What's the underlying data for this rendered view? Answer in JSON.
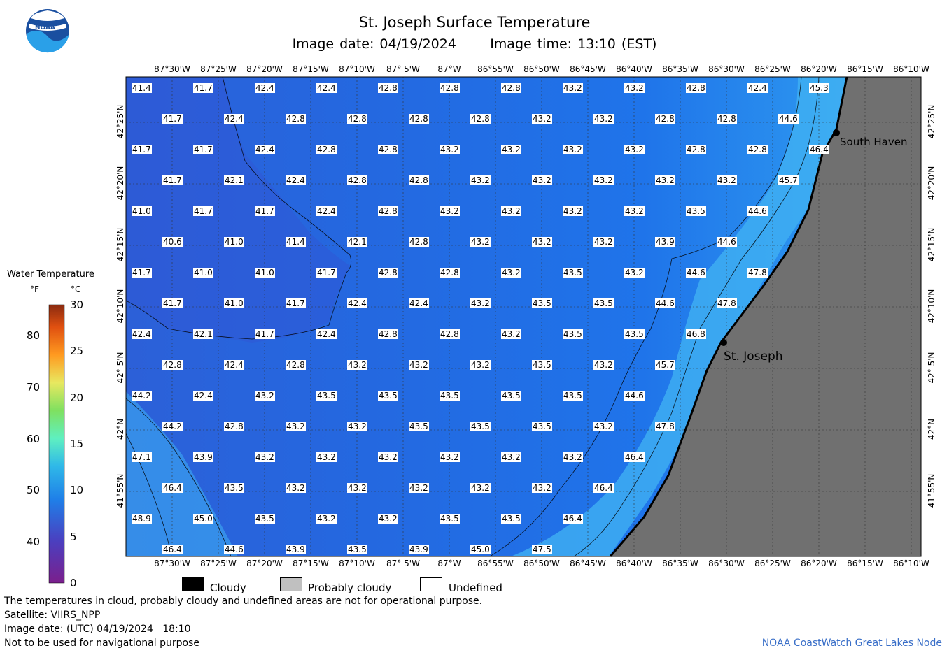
{
  "title": "St. Joseph Surface Temperature",
  "subtitle": {
    "date_label": "Image date:",
    "date": "04/19/2024",
    "time_label": "Image time:",
    "time": "13:10 (EST)"
  },
  "logo_text": "NOAA",
  "longitudes": [
    "87°30'W",
    "87°25'W",
    "87°20'W",
    "87°15'W",
    "87°10'W",
    "87° 5'W",
    "87°W",
    "86°55'W",
    "86°50'W",
    "86°45'W",
    "86°40'W",
    "86°35'W",
    "86°30'W",
    "86°25'W",
    "86°20'W",
    "86°15'W",
    "86°10'W"
  ],
  "latitudes": [
    "42°25'N",
    "42°20'N",
    "42°15'N",
    "42°10'N",
    "42° 5'N",
    "42°N",
    "41°55'N"
  ],
  "places": [
    {
      "name": "South Haven"
    },
    {
      "name": "St. Joseph"
    }
  ],
  "legend": {
    "title": "Water Temperature",
    "unit_f": "°F",
    "unit_c": "°C",
    "f_ticks": [
      "80",
      "70",
      "60",
      "50",
      "40"
    ],
    "c_ticks": [
      "30",
      "25",
      "20",
      "15",
      "10",
      "5",
      "0"
    ],
    "colors": [
      "#7b1f8c",
      "#4b3fbf",
      "#1f7fe8",
      "#2fb8e8",
      "#5ff0c0",
      "#7fe060",
      "#e8e860",
      "#ff9a20",
      "#e05010",
      "#8a2a10"
    ]
  },
  "keys": [
    {
      "label": "Cloudy",
      "color": "#000000"
    },
    {
      "label": "Probably cloudy",
      "color": "#c0c0c0"
    },
    {
      "label": "Undefined",
      "color": "#ffffff"
    }
  ],
  "notes": [
    "The temperatures in cloud, probably cloudy and undefined areas are not for operational purpose.",
    "Satellite: VIIRS_NPP",
    "Image date: (UTC) 04/19/2024   18:10",
    "Not to be used for navigational purpose"
  ],
  "credit": "NOAA CoastWatch Great Lakes Node",
  "colors": {
    "water_deep": "#1f6fe6",
    "water_cold": "#2a5fd8",
    "water_warm": "#3aa8f0",
    "land": "#707070"
  },
  "temperature_rows": [
    [
      "41.4",
      "41.7",
      "42.4",
      "42.4",
      "42.8",
      "42.8",
      "42.8",
      "43.2",
      "43.2",
      "42.8",
      "42.4",
      "45.3"
    ],
    [
      "41.7",
      "42.4",
      "42.8",
      "42.8",
      "42.8",
      "42.8",
      "43.2",
      "43.2",
      "42.8",
      "42.8",
      "44.6"
    ],
    [
      "41.7",
      "41.7",
      "42.4",
      "42.8",
      "42.8",
      "43.2",
      "43.2",
      "43.2",
      "43.2",
      "42.8",
      "42.8",
      "46.4"
    ],
    [
      "41.7",
      "42.1",
      "42.4",
      "42.8",
      "42.8",
      "43.2",
      "43.2",
      "43.2",
      "43.2",
      "43.2",
      "45.7"
    ],
    [
      "41.0",
      "41.7",
      "41.7",
      "42.4",
      "42.8",
      "43.2",
      "43.2",
      "43.2",
      "43.2",
      "43.5",
      "44.6"
    ],
    [
      "40.6",
      "41.0",
      "41.4",
      "42.1",
      "42.8",
      "43.2",
      "43.2",
      "43.2",
      "43.9",
      "44.6"
    ],
    [
      "41.7",
      "41.0",
      "41.0",
      "41.7",
      "42.8",
      "42.8",
      "43.2",
      "43.5",
      "43.2",
      "44.6",
      "47.8"
    ],
    [
      "41.7",
      "41.0",
      "41.7",
      "42.4",
      "42.4",
      "43.2",
      "43.5",
      "43.5",
      "44.6",
      "47.8"
    ],
    [
      "42.4",
      "42.1",
      "41.7",
      "42.4",
      "42.8",
      "42.8",
      "43.2",
      "43.5",
      "43.5",
      "46.8"
    ],
    [
      "42.8",
      "42.4",
      "42.8",
      "43.2",
      "43.2",
      "43.2",
      "43.5",
      "43.2",
      "45.7"
    ],
    [
      "44.2",
      "42.4",
      "43.2",
      "43.5",
      "43.5",
      "43.5",
      "43.5",
      "43.5",
      "44.6"
    ],
    [
      "44.2",
      "42.8",
      "43.2",
      "43.2",
      "43.5",
      "43.5",
      "43.5",
      "43.2",
      "47.8"
    ],
    [
      "47.1",
      "43.9",
      "43.2",
      "43.2",
      "43.2",
      "43.2",
      "43.2",
      "43.2",
      "46.4"
    ],
    [
      "46.4",
      "43.5",
      "43.2",
      "43.2",
      "43.2",
      "43.2",
      "43.2",
      "46.4"
    ],
    [
      "48.9",
      "45.0",
      "43.5",
      "43.2",
      "43.2",
      "43.5",
      "43.5",
      "46.4"
    ],
    [
      "46.4",
      "44.6",
      "43.9",
      "43.5",
      "43.9",
      "45.0",
      "47.5"
    ]
  ]
}
